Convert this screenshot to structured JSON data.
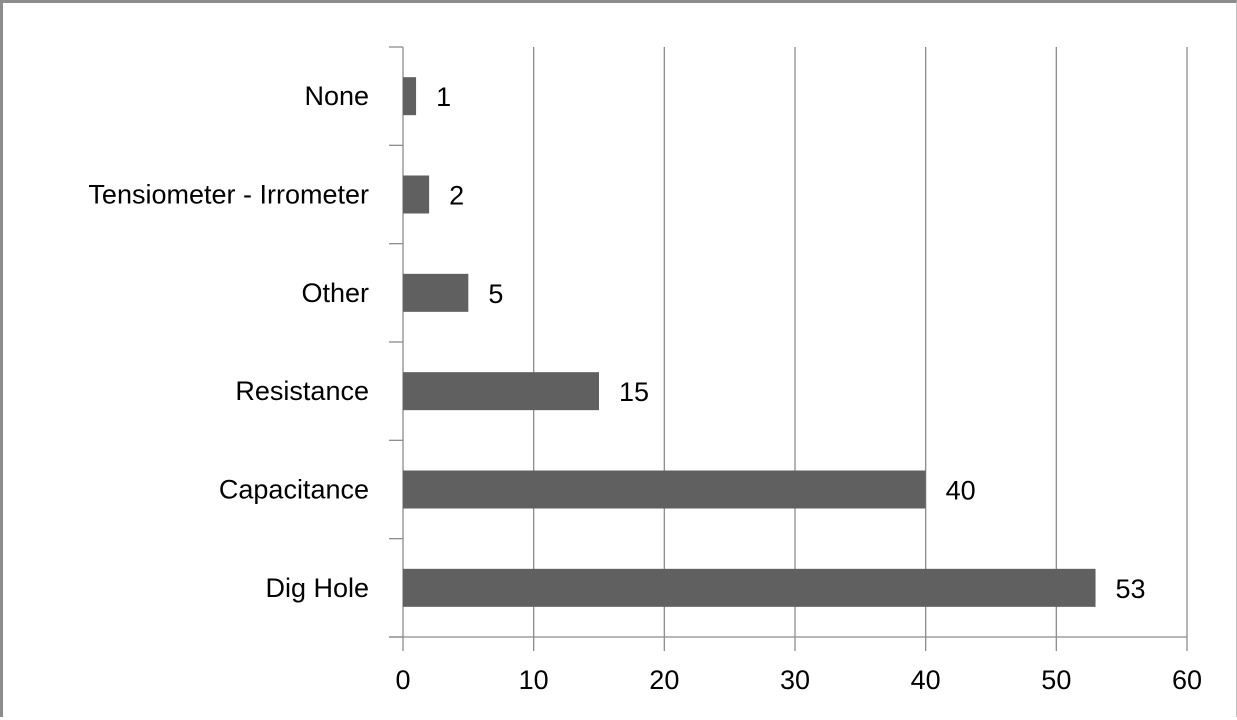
{
  "chart_data": {
    "type": "bar",
    "orientation": "horizontal",
    "title": "",
    "xlabel": "",
    "ylabel": "",
    "categories": [
      "Dig Hole",
      "Capacitance",
      "Resistance",
      "Other",
      "Tensiometer - Irrometer",
      "None"
    ],
    "values": [
      53,
      40,
      15,
      5,
      2,
      1
    ],
    "data_labels": [
      "53",
      "40",
      "15",
      "5",
      "2",
      "1"
    ],
    "xlim": [
      0,
      60
    ],
    "x_ticks": [
      0,
      10,
      20,
      30,
      40,
      50,
      60
    ],
    "x_tick_labels": [
      "0",
      "10",
      "20",
      "30",
      "40",
      "50",
      "60"
    ],
    "gridlines": "vertical",
    "legend": "none",
    "bar_color": "#606060",
    "grid_color": "#8c8c8c"
  }
}
